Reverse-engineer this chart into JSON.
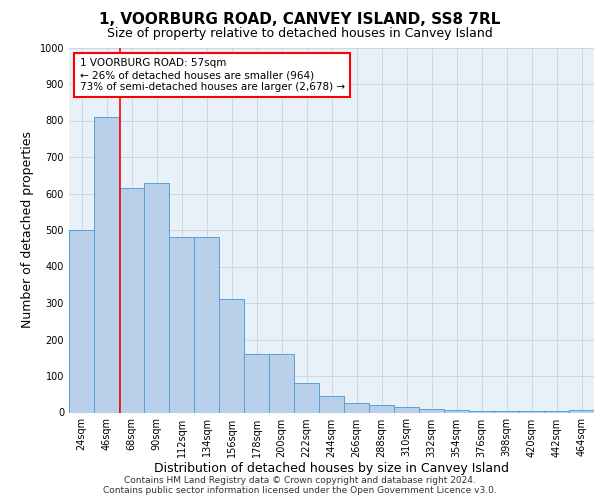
{
  "title": "1, VOORBURG ROAD, CANVEY ISLAND, SS8 7RL",
  "subtitle": "Size of property relative to detached houses in Canvey Island",
  "xlabel": "Distribution of detached houses by size in Canvey Island",
  "ylabel": "Number of detached properties",
  "bar_color": "#b8d0ea",
  "bar_edge_color": "#5a9fd4",
  "bar_values": [
    500,
    810,
    615,
    630,
    480,
    480,
    310,
    160,
    160,
    80,
    45,
    25,
    20,
    15,
    10,
    8,
    5,
    3,
    3,
    3,
    8
  ],
  "bin_labels": [
    "24sqm",
    "46sqm",
    "68sqm",
    "90sqm",
    "112sqm",
    "134sqm",
    "156sqm",
    "178sqm",
    "200sqm",
    "222sqm",
    "244sqm",
    "266sqm",
    "288sqm",
    "310sqm",
    "332sqm",
    "354sqm",
    "376sqm",
    "398sqm",
    "420sqm",
    "442sqm",
    "464sqm"
  ],
  "ylim": [
    0,
    1000
  ],
  "yticks": [
    0,
    100,
    200,
    300,
    400,
    500,
    600,
    700,
    800,
    900,
    1000
  ],
  "red_line_x": 1.545,
  "annotation_text": "1 VOORBURG ROAD: 57sqm\n← 26% of detached houses are smaller (964)\n73% of semi-detached houses are larger (2,678) →",
  "annotation_box_color": "white",
  "annotation_box_edge_color": "red",
  "grid_color": "#c8d8e8",
  "background_color": "#e8f0f8",
  "footer_line1": "Contains HM Land Registry data © Crown copyright and database right 2024.",
  "footer_line2": "Contains public sector information licensed under the Open Government Licence v3.0.",
  "title_fontsize": 11,
  "subtitle_fontsize": 9,
  "axis_label_fontsize": 9,
  "tick_fontsize": 7,
  "annotation_fontsize": 7.5,
  "footer_fontsize": 6.5
}
